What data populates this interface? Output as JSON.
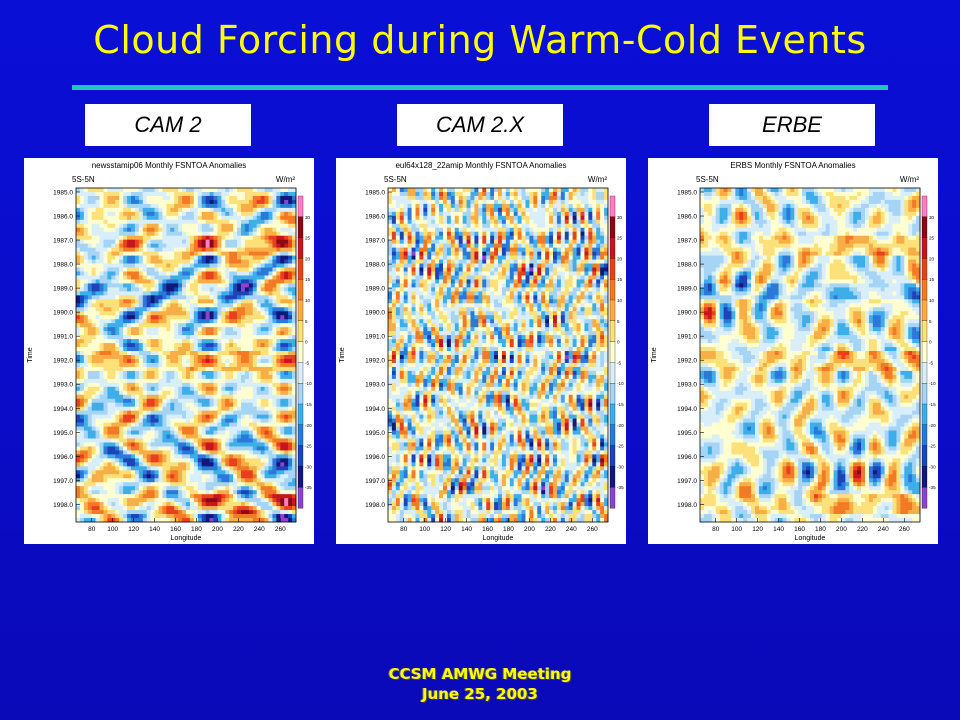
{
  "slide": {
    "title": "Cloud Forcing during Warm-Cold Events",
    "footer_line1": "CCSM AMWG Meeting",
    "footer_line2": "June 25, 2003",
    "colors": {
      "title": "#ffff00",
      "background": "#0a0fd6",
      "rule": "#20c4c0"
    }
  },
  "chart_data": [
    {
      "type": "heatmap",
      "label": "CAM 2",
      "title": "newsstamip06 Monthly FSNTOA Anomalies",
      "region": "5S-5N",
      "units": "W/m²",
      "xlabel": "Longitude",
      "ylabel": "Time",
      "x_ticks": [
        "80",
        "100",
        "120",
        "140",
        "160",
        "180",
        "200",
        "220",
        "240",
        "260"
      ],
      "y_ticks": [
        "1985.0",
        "1986.0",
        "1987.0",
        "1988.0",
        "1989.0",
        "1990.0",
        "1991.0",
        "1992.0",
        "1993.0",
        "1994.0",
        "1995.0",
        "1996.0",
        "1997.0",
        "1998.0"
      ],
      "xlim": [
        65,
        275
      ],
      "ylim": [
        1985,
        1998.9
      ],
      "colorbar_levels": [
        "35",
        "30",
        "25",
        "20",
        "15",
        "10",
        "5",
        "0",
        "-5",
        "-10",
        "-15",
        "-20",
        "-25",
        "-30",
        "-35"
      ]
    },
    {
      "type": "heatmap",
      "label": "CAM 2.X",
      "title": "eul64x128_22amip Monthly FSNTOA Anomalies",
      "region": "5S-5N",
      "units": "W/m²",
      "xlabel": "Longitude",
      "ylabel": "Time",
      "x_ticks": [
        "80",
        "100",
        "120",
        "140",
        "160",
        "180",
        "200",
        "220",
        "240",
        "260"
      ],
      "y_ticks": [
        "1985.0",
        "1986.0",
        "1987.0",
        "1988.0",
        "1989.0",
        "1990.0",
        "1991.0",
        "1992.0",
        "1993.0",
        "1994.0",
        "1995.0",
        "1996.0",
        "1997.0",
        "1998.0"
      ],
      "xlim": [
        65,
        275
      ],
      "ylim": [
        1985,
        1998.9
      ],
      "colorbar_levels": [
        "35",
        "30",
        "25",
        "20",
        "15",
        "10",
        "5",
        "0",
        "-5",
        "-10",
        "-15",
        "-20",
        "-25",
        "-30",
        "-35"
      ]
    },
    {
      "type": "heatmap",
      "label": "ERBE",
      "title": "ERBS Monthly FSNTOA Anomalies",
      "region": "5S-5N",
      "units": "W/m²",
      "xlabel": "Longitude",
      "ylabel": "Time",
      "x_ticks": [
        "80",
        "100",
        "120",
        "140",
        "160",
        "180",
        "200",
        "220",
        "240",
        "260"
      ],
      "y_ticks": [
        "1985.0",
        "1986.0",
        "1987.0",
        "1988.0",
        "1989.0",
        "1990.0",
        "1991.0",
        "1992.0",
        "1993.0",
        "1994.0",
        "1995.0",
        "1996.0",
        "1997.0",
        "1998.0"
      ],
      "xlim": [
        65,
        275
      ],
      "ylim": [
        1985,
        1998.9
      ],
      "colorbar_levels": [
        "35",
        "30",
        "25",
        "20",
        "15",
        "10",
        "5",
        "0",
        "-5",
        "-10",
        "-15",
        "-20",
        "-25",
        "-30",
        "-35"
      ]
    }
  ],
  "colorbar_colors": [
    "#ff7ec8",
    "#8a0a14",
    "#c8141e",
    "#e8401e",
    "#f27a24",
    "#f8ae46",
    "#fce07a",
    "#ffffd2",
    "#d8eefa",
    "#a6d4f4",
    "#3eaee8",
    "#2a78d8",
    "#1c44b8",
    "#101878",
    "#8a44d0"
  ]
}
